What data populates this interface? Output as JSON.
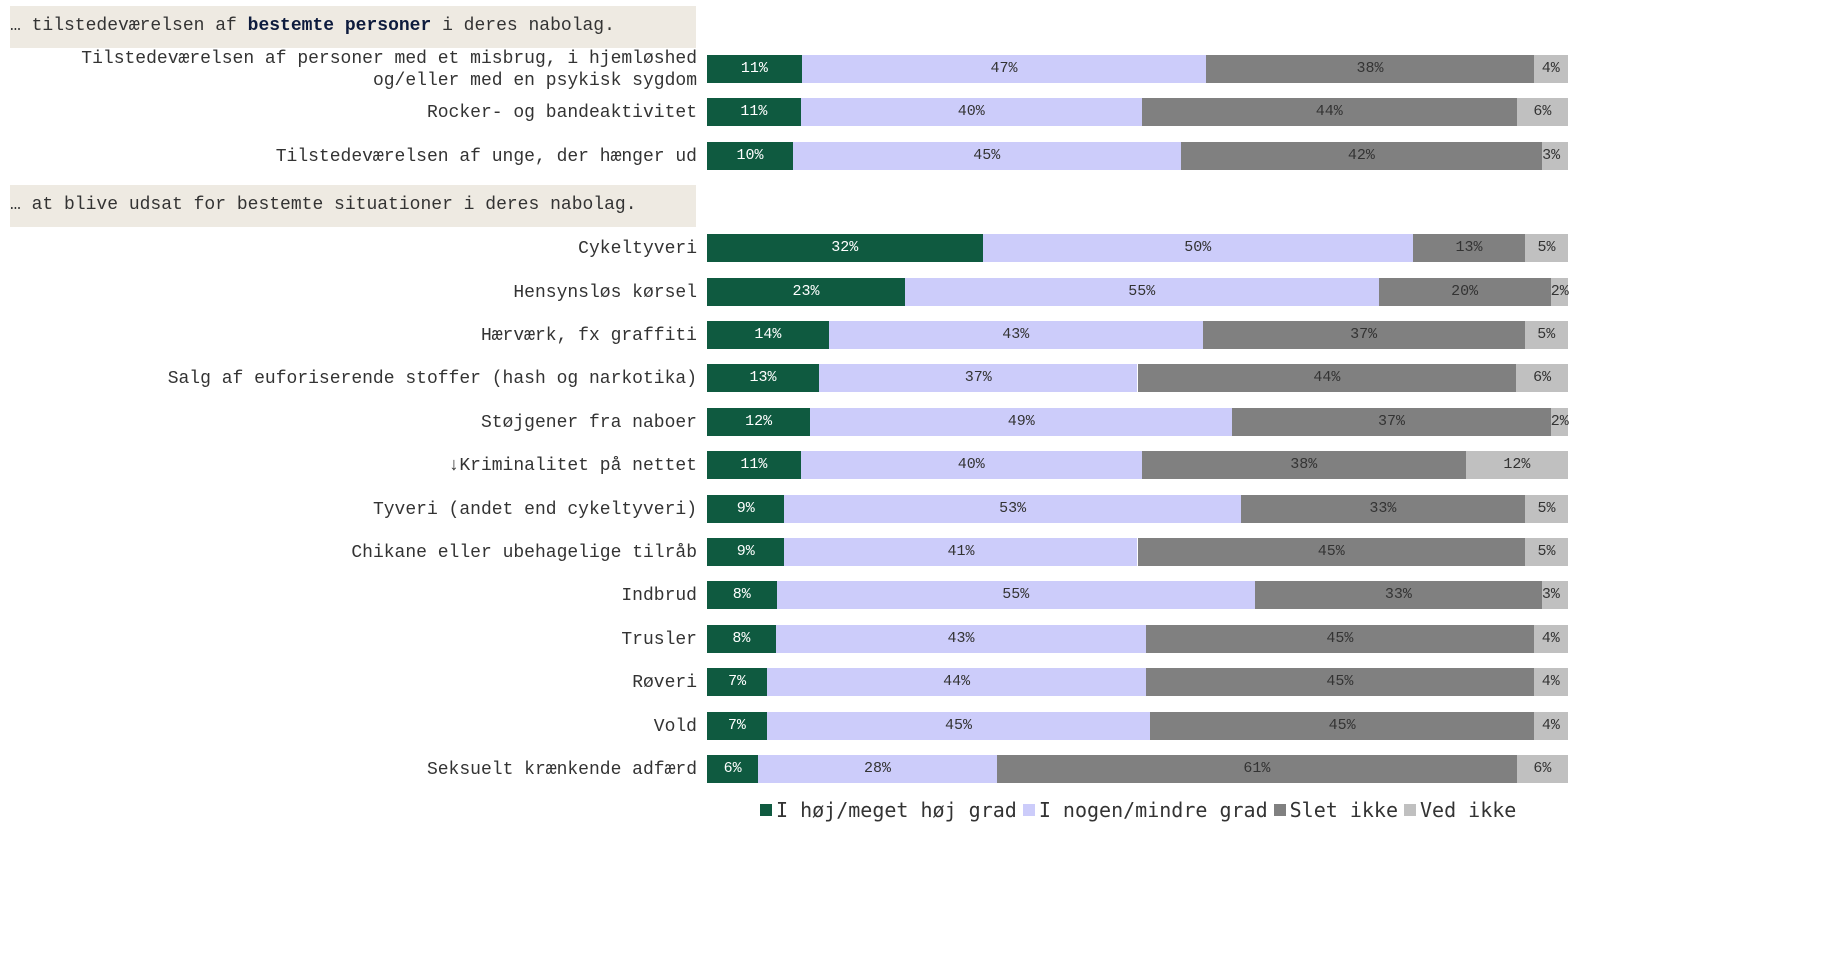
{
  "chart_data": {
    "type": "bar",
    "stacked": true,
    "orientation": "horizontal",
    "sections": [
      {
        "header_prefix": "… tilstedeværelsen af ",
        "header_bold": "bestemte personer",
        "header_suffix": " i deres nabolag.",
        "rows": [
          {
            "label": "Tilstedeværelsen af personer med et misbrug, i hjemløshed\nog/eller med en psykisk sygdom",
            "values": [
              11,
              47,
              38,
              4
            ]
          },
          {
            "label": "Rocker- og bandeaktivitet",
            "values": [
              11,
              40,
              44,
              6
            ]
          },
          {
            "label": "Tilstedeværelsen af unge, der hænger ud",
            "values": [
              10,
              45,
              42,
              3
            ]
          }
        ]
      },
      {
        "header_prefix": "… at blive udsat for bestemte situationer i deres nabolag.",
        "header_bold": "",
        "header_suffix": "",
        "rows": [
          {
            "label": "Cykeltyveri",
            "values": [
              32,
              50,
              13,
              5
            ]
          },
          {
            "label": "Hensynsløs kørsel",
            "values": [
              23,
              55,
              20,
              2
            ]
          },
          {
            "label": "Hærværk, fx graffiti",
            "values": [
              14,
              43,
              37,
              5
            ]
          },
          {
            "label": "Salg af euforiserende stoffer (hash og narkotika)",
            "values": [
              13,
              37,
              44,
              6
            ]
          },
          {
            "label": "Støjgener fra naboer",
            "values": [
              12,
              49,
              37,
              2
            ]
          },
          {
            "label": "↓Kriminalitet på nettet",
            "values": [
              11,
              40,
              38,
              12
            ]
          },
          {
            "label": "Tyveri (andet end cykeltyveri)",
            "values": [
              9,
              53,
              33,
              5
            ]
          },
          {
            "label": "Chikane eller ubehagelige tilråb",
            "values": [
              9,
              41,
              45,
              5
            ]
          },
          {
            "label": "Indbrud",
            "values": [
              8,
              55,
              33,
              3
            ]
          },
          {
            "label": "Trusler",
            "values": [
              8,
              43,
              45,
              4
            ]
          },
          {
            "label": "Røveri",
            "values": [
              7,
              44,
              45,
              4
            ]
          },
          {
            "label": "Vold",
            "values": [
              7,
              45,
              45,
              4
            ]
          },
          {
            "label": "Seksuelt krænkende adfærd",
            "values": [
              6,
              28,
              61,
              6
            ]
          }
        ]
      }
    ],
    "series": [
      {
        "name": "I høj/meget høj grad",
        "color": "#0f5a40",
        "label_color": "#ffffff"
      },
      {
        "name": "I nogen/mindre grad",
        "color": "#ccccfa",
        "label_color": "#333333"
      },
      {
        "name": "Slet ikke",
        "color": "#808080",
        "label_color": "#333333"
      },
      {
        "name": "Ved ikke",
        "color": "#c0c0c0",
        "label_color": "#333333"
      }
    ],
    "value_suffix": "%",
    "legend_position": "bottom",
    "xlim": [
      0,
      100
    ]
  }
}
